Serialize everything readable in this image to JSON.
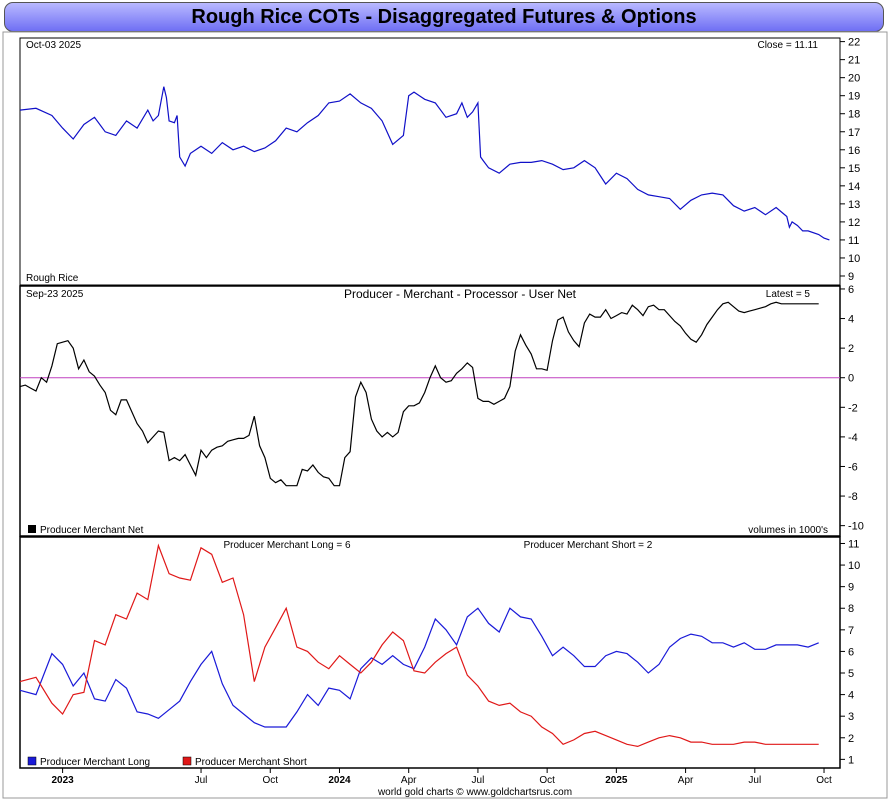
{
  "page_title": "Rough Rice COTs - Disaggregated Futures & Options",
  "footer": "world gold charts © www.goldchartsrus.com",
  "colors": {
    "price": "#1010c8",
    "net": "#000000",
    "zero": "#c040c0",
    "long": "#1a1ad8",
    "short": "#e01818",
    "title_bg": "#8c8cf8"
  },
  "x_axis": {
    "months": [
      {
        "label": "2023",
        "bold": true,
        "t": 8
      },
      {
        "label": "Jul",
        "bold": false,
        "t": 34
      },
      {
        "label": "Oct",
        "bold": false,
        "t": 47
      },
      {
        "label": "2024",
        "bold": true,
        "t": 60
      },
      {
        "label": "Apr",
        "bold": false,
        "t": 73
      },
      {
        "label": "Jul",
        "bold": false,
        "t": 86
      },
      {
        "label": "Oct",
        "bold": false,
        "t": 99
      },
      {
        "label": "2025",
        "bold": true,
        "t": 112
      },
      {
        "label": "Apr",
        "bold": false,
        "t": 125
      },
      {
        "label": "Jul",
        "bold": false,
        "t": 138
      },
      {
        "label": "Oct",
        "bold": false,
        "t": 151
      }
    ]
  },
  "chart_data": [
    {
      "type": "line",
      "panel": "price",
      "date_label": "Oct-03  2025",
      "latest_label": "Close = 11.11",
      "legend": "Rough Rice",
      "ylim": [
        8.5,
        22.2
      ],
      "yticks": [
        9,
        10,
        11,
        12,
        13,
        14,
        15,
        16,
        17,
        18,
        19,
        20,
        21,
        22
      ],
      "series": [
        {
          "name": "Rough Rice",
          "x": [
            0,
            3,
            6,
            8,
            10,
            12,
            14,
            16,
            18,
            20,
            22,
            24,
            25,
            26,
            27,
            27.5,
            28,
            29,
            29.5,
            30,
            31,
            32,
            34,
            36,
            38,
            40,
            42,
            44,
            46,
            48,
            50,
            52,
            54,
            56,
            58,
            60,
            62,
            64,
            66,
            68,
            70,
            72,
            73,
            74,
            75,
            76,
            78,
            80,
            82,
            83,
            84,
            85,
            86,
            86.5,
            87,
            88,
            90,
            92,
            94,
            96,
            98,
            100,
            102,
            104,
            106,
            108,
            110,
            112,
            114,
            116,
            118,
            120,
            122,
            124,
            126,
            128,
            130,
            132,
            134,
            136,
            138,
            140,
            142,
            144,
            144.5,
            145,
            146,
            147,
            148,
            150,
            151,
            152
          ],
          "values": [
            18.2,
            18.3,
            17.9,
            17.2,
            16.6,
            17.4,
            17.8,
            17.0,
            16.8,
            17.6,
            17.2,
            18.2,
            17.6,
            17.9,
            19.5,
            18.9,
            17.6,
            17.5,
            17.9,
            15.6,
            15.1,
            15.8,
            16.2,
            15.8,
            16.4,
            16.0,
            16.2,
            15.9,
            16.1,
            16.5,
            17.2,
            17.0,
            17.5,
            17.9,
            18.6,
            18.7,
            19.1,
            18.6,
            18.3,
            17.6,
            16.3,
            16.8,
            19.0,
            19.2,
            19.0,
            18.8,
            18.6,
            17.8,
            18.0,
            18.6,
            17.8,
            18.1,
            18.6,
            15.6,
            15.4,
            15.0,
            14.7,
            15.2,
            15.3,
            15.3,
            15.4,
            15.2,
            14.9,
            15.0,
            15.4,
            15.0,
            14.1,
            14.7,
            14.4,
            13.8,
            13.5,
            13.4,
            13.3,
            12.7,
            13.2,
            13.5,
            13.6,
            13.5,
            12.9,
            12.6,
            12.8,
            12.4,
            12.8,
            12.3,
            11.7,
            12.0,
            11.8,
            11.5,
            11.5,
            11.3,
            11.1,
            11.0
          ]
        }
      ]
    },
    {
      "type": "line",
      "panel": "net",
      "date_label": "Sep-23  2025",
      "title": "Producer - Merchant - Processor - User Net",
      "latest_label": "Latest = 5",
      "legend": "Producer Merchant Net",
      "note": "volumes in 1000's",
      "ylim": [
        -10.7,
        6.2
      ],
      "yticks": [
        6,
        4,
        2,
        0,
        -2,
        -4,
        -6,
        -8,
        -10
      ],
      "series": [
        {
          "name": "Producer Merchant Net",
          "x": [
            0,
            1,
            2,
            3,
            4,
            5,
            6,
            7,
            8,
            9,
            10,
            11,
            12,
            13,
            14,
            15,
            16,
            17,
            18,
            19,
            20,
            21,
            22,
            23,
            24,
            25,
            26,
            27,
            28,
            29,
            30,
            31,
            32,
            33,
            34,
            35,
            36,
            37,
            38,
            39,
            40,
            41,
            42,
            43,
            44,
            45,
            46,
            47,
            48,
            49,
            50,
            51,
            52,
            53,
            54,
            55,
            56,
            57,
            58,
            59,
            60,
            61,
            62,
            63,
            64,
            65,
            66,
            67,
            68,
            69,
            70,
            71,
            72,
            73,
            74,
            75,
            76,
            77,
            78,
            79,
            80,
            81,
            82,
            83,
            84,
            85,
            86,
            87,
            88,
            89,
            90,
            91,
            92,
            93,
            94,
            95,
            96,
            97,
            98,
            99,
            100,
            101,
            102,
            103,
            104,
            105,
            106,
            107,
            108,
            109,
            110,
            111,
            112,
            113,
            114,
            115,
            116,
            117,
            118,
            119,
            120,
            121,
            122,
            123,
            124,
            125,
            126,
            127,
            128,
            129,
            130,
            131,
            132,
            133,
            134,
            135,
            136,
            137,
            138,
            139,
            140,
            141,
            142,
            143,
            144,
            145,
            146,
            147,
            148,
            149,
            150
          ],
          "values": [
            -0.6,
            -0.5,
            -0.7,
            -0.9,
            0.0,
            -0.3,
            0.8,
            2.3,
            2.4,
            2.5,
            2.0,
            0.6,
            1.2,
            0.4,
            0.1,
            -0.5,
            -1.0,
            -2.2,
            -2.5,
            -1.5,
            -1.5,
            -2.3,
            -3.1,
            -3.6,
            -4.4,
            -4.0,
            -3.6,
            -3.7,
            -5.6,
            -5.4,
            -5.6,
            -5.2,
            -5.9,
            -6.6,
            -4.9,
            -5.4,
            -4.9,
            -4.7,
            -4.6,
            -4.3,
            -4.2,
            -4.1,
            -4.1,
            -3.9,
            -2.6,
            -4.6,
            -5.4,
            -6.8,
            -7.1,
            -6.9,
            -7.3,
            -7.3,
            -7.3,
            -6.2,
            -6.3,
            -5.9,
            -6.4,
            -6.7,
            -6.8,
            -7.3,
            -7.3,
            -5.4,
            -5.0,
            -1.3,
            -0.3,
            -1.0,
            -2.8,
            -3.6,
            -4.0,
            -3.7,
            -4.0,
            -3.7,
            -2.3,
            -1.9,
            -1.9,
            -1.7,
            -1.0,
            0.0,
            0.8,
            0.0,
            -0.3,
            -0.2,
            0.3,
            0.6,
            1.0,
            0.7,
            -1.4,
            -1.6,
            -1.6,
            -1.8,
            -1.6,
            -1.4,
            -0.6,
            1.8,
            2.9,
            2.2,
            1.6,
            0.6,
            0.6,
            0.5,
            2.5,
            3.9,
            4.1,
            3.1,
            2.5,
            2.1,
            3.7,
            4.3,
            4.1,
            4.1,
            4.6,
            4.0,
            4.2,
            4.4,
            4.3,
            4.9,
            4.6,
            4.2,
            4.8,
            4.9,
            4.6,
            4.6,
            4.2,
            3.8,
            3.5,
            3.0,
            2.6,
            2.4,
            2.9,
            3.6,
            4.1,
            4.6,
            5.0,
            5.1,
            4.8,
            4.5,
            4.4,
            4.5,
            4.6,
            4.7,
            4.8,
            5.0,
            5.1,
            5.0,
            5.0,
            5.0,
            5.0,
            5.0,
            5.0,
            5.0,
            5.0
          ]
        }
      ]
    },
    {
      "type": "line",
      "panel": "long_short",
      "long_label": "Producer Merchant Long = 6",
      "short_label": "Producer Merchant Short = 2",
      "ylim": [
        0.6,
        11.3
      ],
      "yticks": [
        11,
        10,
        9,
        8,
        7,
        6,
        5,
        4,
        3,
        2,
        1
      ],
      "series": [
        {
          "name": "Producer Merchant Long",
          "x": [
            0,
            3,
            6,
            8,
            10,
            12,
            14,
            16,
            18,
            20,
            22,
            24,
            26,
            28,
            30,
            32,
            34,
            36,
            38,
            40,
            42,
            44,
            46,
            48,
            50,
            52,
            54,
            56,
            58,
            60,
            62,
            64,
            66,
            68,
            70,
            72,
            74,
            76,
            78,
            80,
            82,
            84,
            86,
            88,
            90,
            92,
            94,
            96,
            98,
            100,
            102,
            104,
            106,
            108,
            110,
            112,
            114,
            116,
            118,
            120,
            122,
            124,
            126,
            128,
            130,
            132,
            134,
            136,
            138,
            140,
            142,
            144,
            146,
            148,
            150
          ],
          "values": [
            4.2,
            4.0,
            5.9,
            5.4,
            4.4,
            5.0,
            3.8,
            3.7,
            4.7,
            4.3,
            3.2,
            3.1,
            2.9,
            3.3,
            3.7,
            4.6,
            5.4,
            6.0,
            4.5,
            3.5,
            3.1,
            2.7,
            2.5,
            2.5,
            2.5,
            3.2,
            4.0,
            3.5,
            4.3,
            4.2,
            3.8,
            5.2,
            5.7,
            5.4,
            5.8,
            5.4,
            5.2,
            6.2,
            7.5,
            7.0,
            6.3,
            7.6,
            8.0,
            7.3,
            6.9,
            8.0,
            7.6,
            7.5,
            6.7,
            5.8,
            6.2,
            5.8,
            5.3,
            5.3,
            5.8,
            6.0,
            5.9,
            5.5,
            5.0,
            5.4,
            6.2,
            6.6,
            6.8,
            6.7,
            6.4,
            6.4,
            6.2,
            6.4,
            6.1,
            6.1,
            6.3,
            6.3,
            6.3,
            6.2,
            6.4
          ]
        },
        {
          "name": "Producer Merchant Short",
          "x": [
            0,
            3,
            6,
            8,
            10,
            12,
            14,
            16,
            18,
            20,
            22,
            24,
            26,
            28,
            30,
            32,
            34,
            36,
            38,
            40,
            42,
            44,
            46,
            48,
            50,
            52,
            54,
            56,
            58,
            60,
            62,
            64,
            66,
            68,
            70,
            72,
            74,
            76,
            78,
            80,
            82,
            84,
            86,
            88,
            90,
            92,
            94,
            96,
            98,
            100,
            102,
            104,
            106,
            108,
            110,
            112,
            114,
            116,
            118,
            120,
            122,
            124,
            126,
            128,
            130,
            132,
            134,
            136,
            138,
            140,
            142,
            144,
            146,
            148,
            150
          ],
          "values": [
            4.6,
            4.8,
            3.6,
            3.1,
            4.0,
            4.1,
            6.5,
            6.3,
            7.7,
            7.5,
            8.7,
            8.4,
            10.9,
            9.6,
            9.4,
            9.3,
            10.8,
            10.5,
            9.2,
            9.4,
            7.7,
            4.6,
            6.2,
            7.1,
            8.0,
            6.2,
            6.0,
            5.5,
            5.2,
            5.8,
            5.4,
            5.0,
            5.5,
            6.3,
            6.9,
            6.5,
            5.1,
            5.0,
            5.5,
            5.9,
            6.2,
            4.9,
            4.4,
            3.7,
            3.5,
            3.6,
            3.2,
            3.0,
            2.5,
            2.2,
            1.7,
            1.9,
            2.2,
            2.3,
            2.1,
            1.9,
            1.7,
            1.6,
            1.8,
            2.0,
            2.1,
            2.0,
            1.8,
            1.8,
            1.7,
            1.7,
            1.7,
            1.8,
            1.8,
            1.7,
            1.7,
            1.7,
            1.7,
            1.7,
            1.7
          ]
        }
      ]
    }
  ],
  "legends": {
    "long": "Producer Merchant Long",
    "short": "Producer Merchant Short"
  }
}
